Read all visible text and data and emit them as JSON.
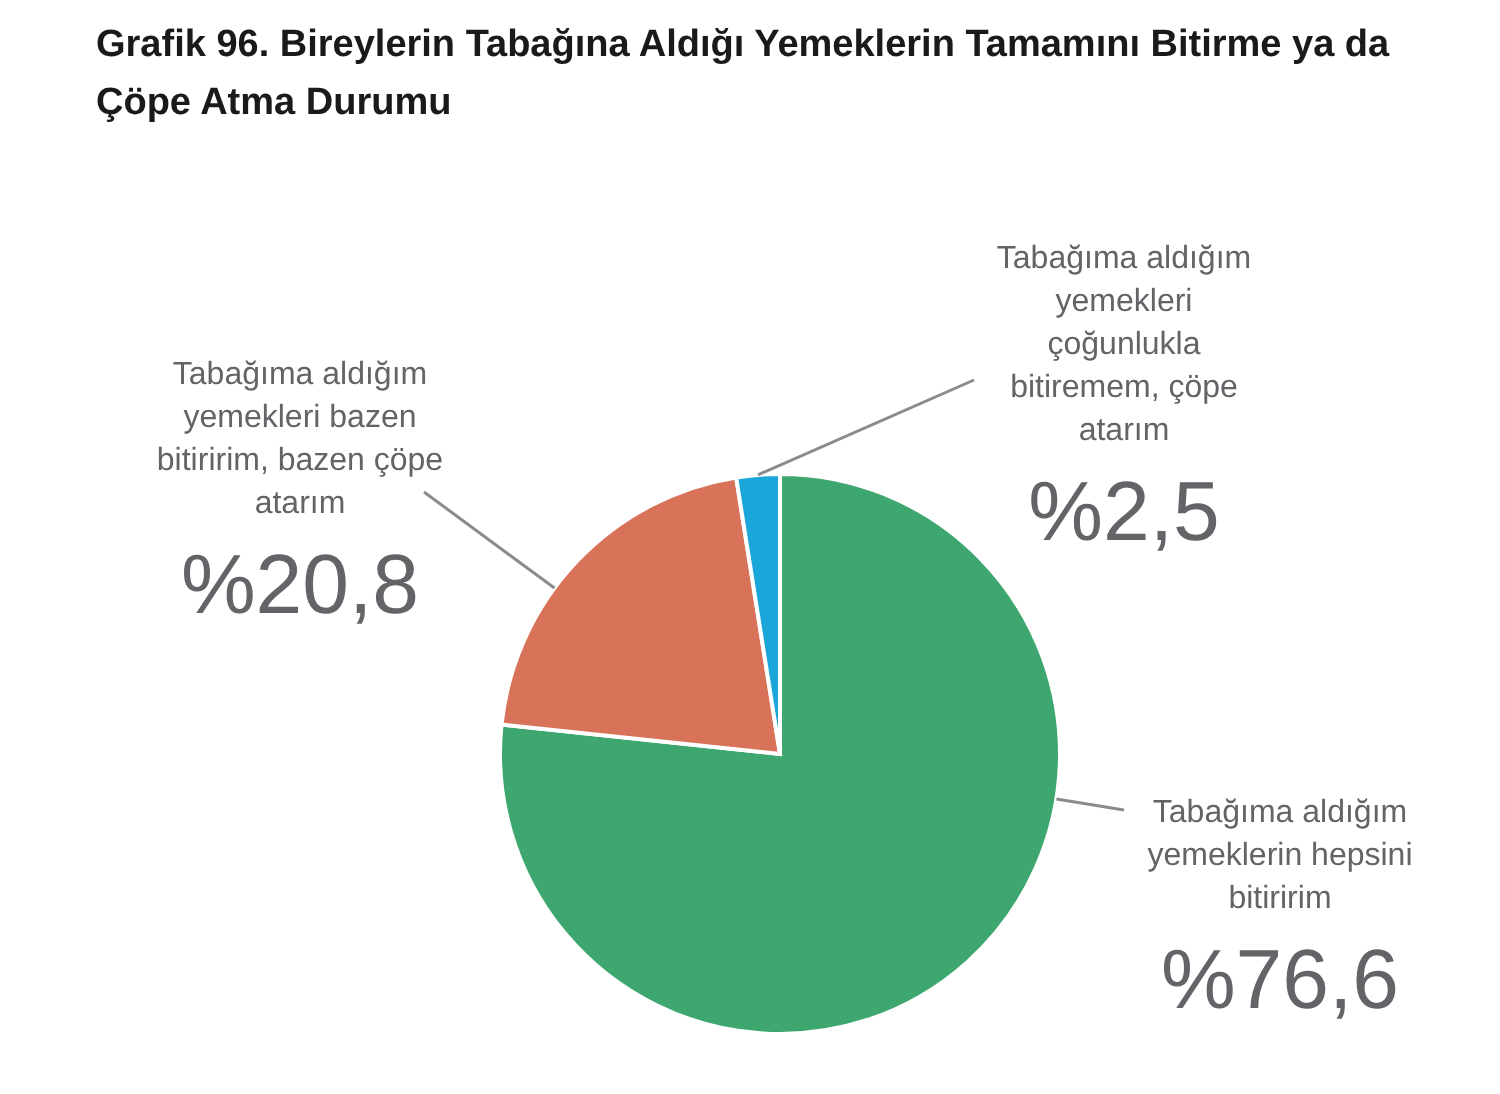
{
  "chart_data": {
    "type": "pie",
    "title": "Grafik 96. Bireylerin Tabağına Aldığı Yemeklerin Tamamını Bitirme ya da Çöpe Atma Durumu",
    "categories": [
      "Tabağıma aldığım yemeklerin hepsini bitiririm",
      "Tabağıma aldığım yemekleri bazen bitiririm, bazen çöpe atarım",
      "Tabağıma aldığım yemekleri çoğunlukla bitiremem, çöpe atarım"
    ],
    "values": [
      76.6,
      20.8,
      2.5
    ],
    "colors": [
      "#3ea76f",
      "#d8735a",
      "#1aa6d9"
    ],
    "value_labels": [
      "%76,6",
      "%20,8",
      "%2,5"
    ]
  }
}
